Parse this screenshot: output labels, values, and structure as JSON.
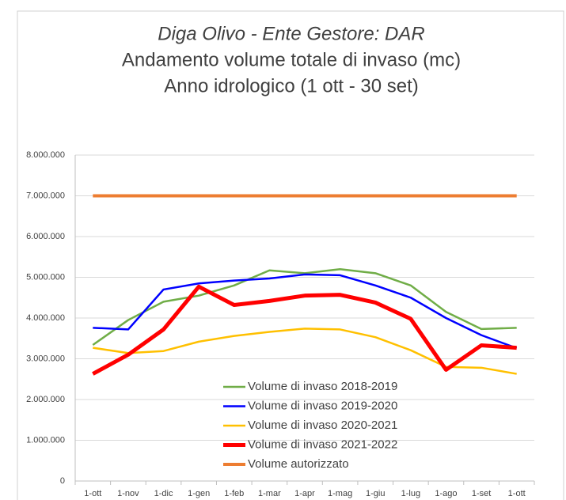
{
  "chart_data": {
    "type": "line",
    "title": [
      "Diga Olivo - Ente Gestore: DAR",
      "Andamento volume totale di invaso (mc)",
      "Anno idrologico (1 ott - 30 set)"
    ],
    "categories": [
      "1-ott",
      "1-nov",
      "1-dic",
      "1-gen",
      "1-feb",
      "1-mar",
      "1-apr",
      "1-mag",
      "1-giu",
      "1-lug",
      "1-ago",
      "1-set",
      "1-ott"
    ],
    "series": [
      {
        "name": "Volume di invaso 2018-2019",
        "color": "#70ad47",
        "width": 2.5,
        "values": [
          3340000,
          3950000,
          4400000,
          4550000,
          4800000,
          5170000,
          5100000,
          5200000,
          5100000,
          4800000,
          4150000,
          3730000,
          3760000
        ]
      },
      {
        "name": "Volume di invaso 2019-2020",
        "color": "#0000ff",
        "width": 2.5,
        "values": [
          3760000,
          3720000,
          4700000,
          4850000,
          4920000,
          4970000,
          5070000,
          5050000,
          4800000,
          4500000,
          4000000,
          3580000,
          3260000
        ]
      },
      {
        "name": "Volume di invaso 2020-2021",
        "color": "#ffc000",
        "width": 2.5,
        "values": [
          3270000,
          3140000,
          3190000,
          3420000,
          3560000,
          3660000,
          3740000,
          3720000,
          3530000,
          3210000,
          2800000,
          2780000,
          2630000
        ]
      },
      {
        "name": "Volume di invaso 2021-2022",
        "color": "#ff0000",
        "width": 5,
        "values": [
          2630000,
          3100000,
          3720000,
          4770000,
          4320000,
          4420000,
          4550000,
          4570000,
          4380000,
          3980000,
          2730000,
          3330000,
          3270000
        ]
      },
      {
        "name": "Volume autorizzato",
        "color": "#ed7d31",
        "width": 4,
        "values": [
          7000000,
          7000000,
          7000000,
          7000000,
          7000000,
          7000000,
          7000000,
          7000000,
          7000000,
          7000000,
          7000000,
          7000000,
          7000000
        ]
      }
    ],
    "ylim": [
      0,
      8000000
    ],
    "yticks": [
      0,
      {
        "value": 1000000,
        "label": "1.000.000"
      },
      {
        "value": 2000000,
        "label": "2.000.000"
      },
      {
        "value": 3000000,
        "label": "3.000.000"
      },
      {
        "value": 4000000,
        "label": "4.000.000"
      },
      {
        "value": 5000000,
        "label": "5.000.000"
      },
      {
        "value": 6000000,
        "label": "6.000.000"
      },
      {
        "value": 7000000,
        "label": "7.000.000"
      },
      {
        "value": 8000000,
        "label": "8.000.000"
      }
    ],
    "grid": true,
    "legend": "lower center"
  }
}
